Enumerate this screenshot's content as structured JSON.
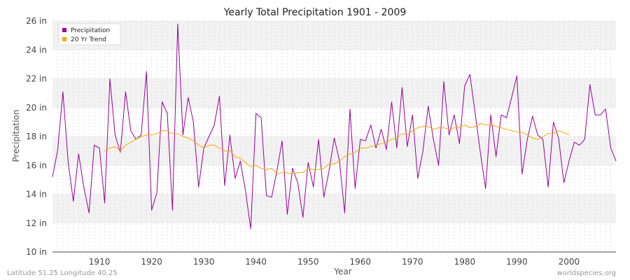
{
  "chart_data": {
    "type": "line",
    "title": "Yearly Total Precipitation 1901 - 2009",
    "xlabel": "Year",
    "ylabel": "Precipitation",
    "xlim": [
      1901,
      2009
    ],
    "ylim": [
      10,
      26
    ],
    "x_ticks": [
      1910,
      1920,
      1930,
      1940,
      1950,
      1960,
      1970,
      1980,
      1990,
      2000
    ],
    "y_ticks": [
      10,
      12,
      14,
      16,
      18,
      20,
      22,
      24,
      26
    ],
    "y_tick_labels": [
      "10 in",
      "12 in",
      "14 in",
      "16 in",
      "18 in",
      "20 in",
      "22 in",
      "24 in",
      "26 in"
    ],
    "grid": true,
    "legend_position": "top-left",
    "series": [
      {
        "name": "Precipitation",
        "color": "#990099",
        "x_start": 1901,
        "values": [
          15.2,
          17.1,
          21.1,
          16.2,
          13.5,
          16.8,
          14.5,
          12.7,
          17.4,
          17.2,
          13.4,
          22.0,
          18.1,
          16.9,
          21.1,
          18.4,
          17.8,
          18.1,
          22.5,
          12.9,
          14.1,
          20.4,
          19.6,
          12.9,
          25.8,
          18.1,
          20.7,
          19.0,
          14.5,
          17.2,
          18.0,
          18.8,
          20.8,
          14.6,
          18.1,
          15.1,
          16.3,
          14.2,
          11.6,
          19.6,
          19.3,
          13.9,
          13.8,
          15.6,
          17.7,
          12.6,
          15.8,
          14.8,
          12.4,
          16.2,
          14.5,
          17.8,
          13.8,
          15.6,
          17.9,
          16.3,
          12.7,
          19.9,
          14.4,
          17.8,
          17.7,
          18.8,
          17.2,
          18.5,
          17.1,
          20.4,
          17.2,
          21.4,
          17.3,
          19.5,
          15.1,
          17.0,
          20.1,
          17.8,
          16.0,
          21.8,
          18.1,
          19.5,
          17.5,
          21.5,
          22.3,
          19.6,
          16.9,
          14.4,
          19.5,
          16.6,
          19.5,
          19.3,
          20.7,
          22.2,
          15.4,
          17.8,
          19.4,
          18.1,
          17.8,
          14.5,
          19.0,
          17.9,
          14.8,
          16.3,
          17.6,
          17.4,
          17.8,
          21.6,
          19.5,
          19.5,
          19.9,
          17.2,
          16.3
        ]
      },
      {
        "name": "20 Yr Trend",
        "color": "#ffa500",
        "x_start": 1911,
        "values": [
          17.0,
          17.2,
          17.3,
          17.0,
          17.4,
          17.6,
          17.8,
          18.0,
          18.1,
          18.1,
          18.2,
          18.4,
          18.4,
          18.2,
          18.2,
          18.0,
          17.9,
          17.7,
          17.4,
          17.2,
          17.4,
          17.4,
          17.2,
          17.0,
          17.0,
          16.6,
          16.5,
          16.2,
          15.9,
          16.0,
          15.8,
          15.7,
          15.8,
          15.4,
          15.5,
          15.5,
          15.4,
          15.5,
          15.5,
          15.8,
          15.7,
          15.7,
          15.8,
          16.1,
          16.1,
          16.3,
          16.6,
          16.8,
          16.9,
          17.2,
          17.2,
          17.3,
          17.4,
          17.5,
          17.6,
          17.8,
          17.9,
          18.2,
          18.1,
          18.4,
          18.6,
          18.7,
          18.7,
          18.5,
          18.6,
          18.6,
          18.5,
          18.6,
          18.6,
          18.8,
          18.6,
          18.7,
          18.9,
          18.8,
          18.8,
          18.7,
          18.6,
          18.5,
          18.4,
          18.3,
          18.3,
          18.1,
          17.9,
          17.8,
          18.0,
          18.2,
          18.2,
          18.4,
          18.3,
          18.1
        ]
      }
    ]
  },
  "footer": {
    "location": "Latitude 51.25 Longitude 40.25",
    "source": "worldspecies.org"
  }
}
